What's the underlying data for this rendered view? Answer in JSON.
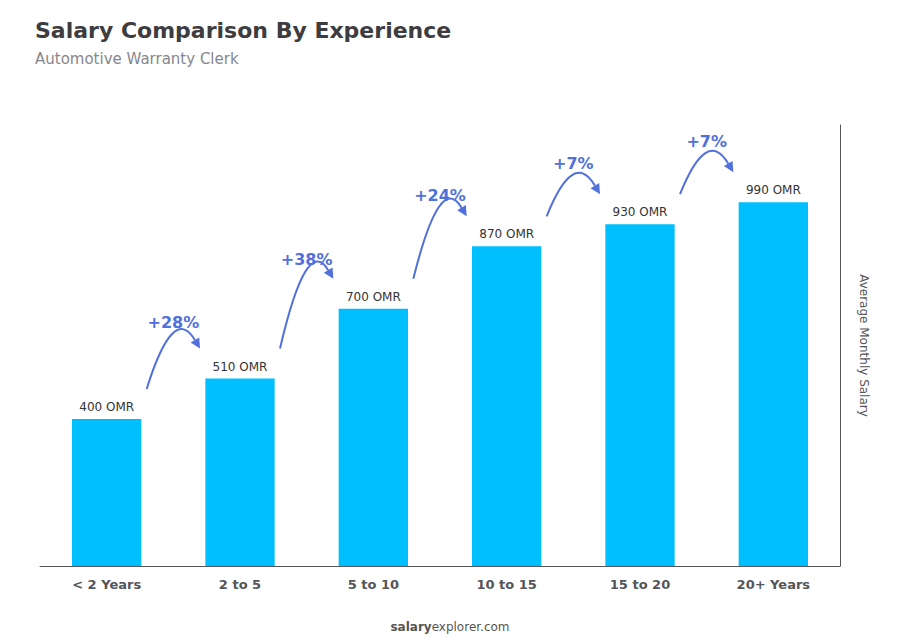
{
  "chart_data": {
    "type": "bar",
    "title": "Salary Comparison By Experience",
    "subtitle": "Automotive Warranty Clerk",
    "ylabel": "Average Monthly Salary",
    "categories": [
      "< 2 Years",
      "2 to 5",
      "5 to 10",
      "10 to 15",
      "15 to 20",
      "20+ Years"
    ],
    "values": [
      400,
      510,
      700,
      870,
      930,
      990
    ],
    "value_labels": [
      "400 OMR",
      "510 OMR",
      "700 OMR",
      "870 OMR",
      "930 OMR",
      "990 OMR"
    ],
    "data_labels": true,
    "color": "#00BFFF",
    "annotations": [
      "+28%",
      "+38%",
      "+24%",
      "+7%",
      "+7%"
    ],
    "watermark_bold": "salary",
    "watermark_normal": "explorer.com",
    "ylim": [
      0,
      1200
    ],
    "yticks": [],
    "tick_labels": "x",
    "grid": false
  }
}
